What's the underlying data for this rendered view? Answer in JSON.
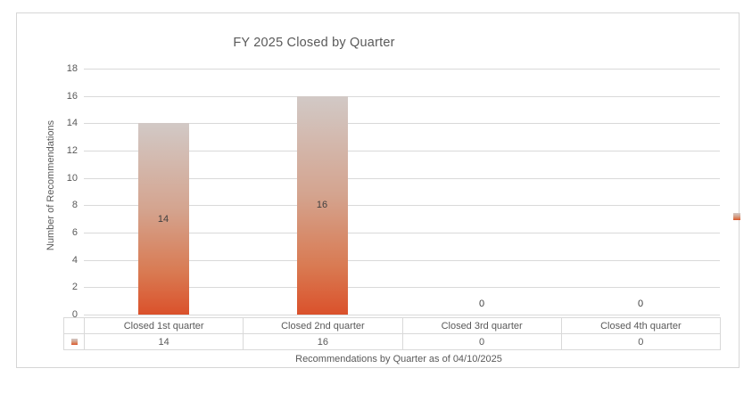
{
  "chart_data": {
    "type": "bar",
    "title": "FY 2025 Closed by Quarter",
    "ylabel": "Number of Recommendations",
    "xlabel": "Recommendations by Quarter as of 04/10/2025",
    "categories": [
      "Closed 1st quarter",
      "Closed 2nd quarter",
      "Closed 3rd quarter",
      "Closed 4th quarter"
    ],
    "values": [
      14,
      16,
      0,
      0
    ],
    "data_labels": [
      "14",
      "16",
      "0",
      "0"
    ],
    "table_values": [
      "14",
      "16",
      "0",
      "0"
    ],
    "ylim": [
      0,
      18
    ],
    "yticks": [
      0,
      2,
      4,
      6,
      8,
      10,
      12,
      14,
      16,
      18
    ],
    "grid": true,
    "legend_position": "right",
    "show_data_table": true,
    "colors": {
      "bar_gradient_top": "#d2c9c6",
      "bar_gradient_bottom": "#da512b",
      "gridline": "#d9d9d9",
      "chart_border": "#d6d6d6",
      "text": "#595959",
      "data_label_text": "#404040",
      "background": "#ffffff"
    }
  }
}
